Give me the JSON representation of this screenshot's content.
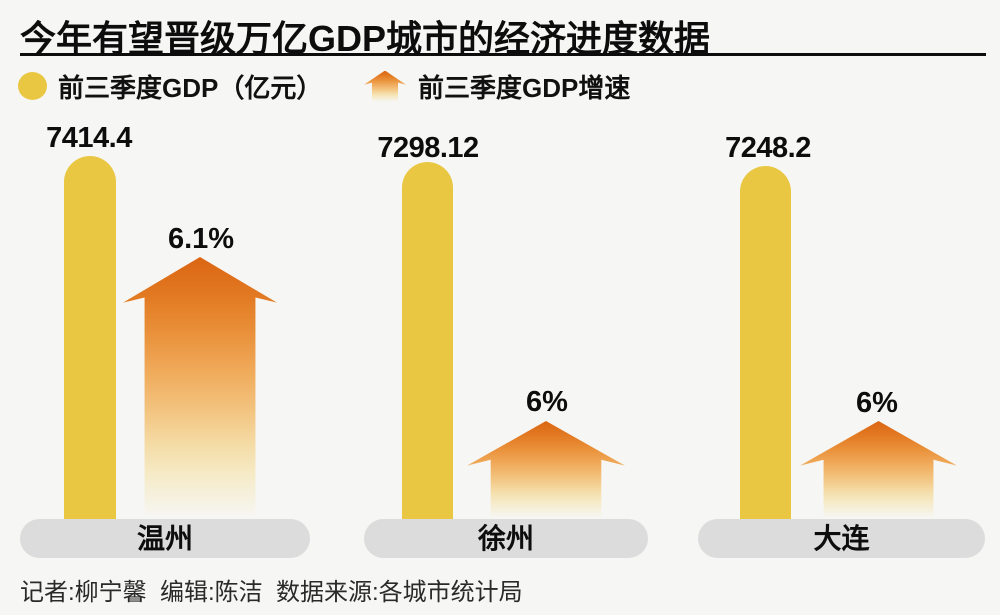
{
  "title": "今年有望晋级万亿GDP城市的经济进度数据",
  "legend": {
    "gdp": {
      "icon": "yellow-dot",
      "label": "前三季度GDP（亿元）"
    },
    "growth": {
      "icon": "orange-up-arrow",
      "label": "前三季度GDP增速"
    }
  },
  "chart_data": {
    "type": "bar",
    "title": "今年有望晋级万亿GDP城市的经济进度数据",
    "categories": [
      "温州",
      "徐州",
      "大连"
    ],
    "series": [
      {
        "name": "前三季度GDP（亿元）",
        "values": [
          7414.4,
          7298.12,
          7248.2
        ]
      },
      {
        "name": "前三季度GDP增速",
        "values": [
          6.1,
          6,
          6
        ],
        "unit": "%"
      }
    ],
    "legend_position": "top",
    "grid": false,
    "groups": [
      {
        "city": "温州",
        "gdp_label": "7414.4",
        "growth_label": "6.1%"
      },
      {
        "city": "徐州",
        "gdp_label": "7298.12",
        "growth_label": "6%"
      },
      {
        "city": "大连",
        "gdp_label": "7248.2",
        "growth_label": "6%"
      }
    ]
  },
  "footer": {
    "credits": "记者:柳宁馨  编辑:陈洁  数据来源:各城市统计局"
  },
  "colors": {
    "background": "#f6f6f4",
    "bar_yellow": "#e9c743",
    "arrow_orange_top": "#db6513",
    "capsule_gray": "#dcdcdc",
    "text": "#0d0d0d"
  }
}
